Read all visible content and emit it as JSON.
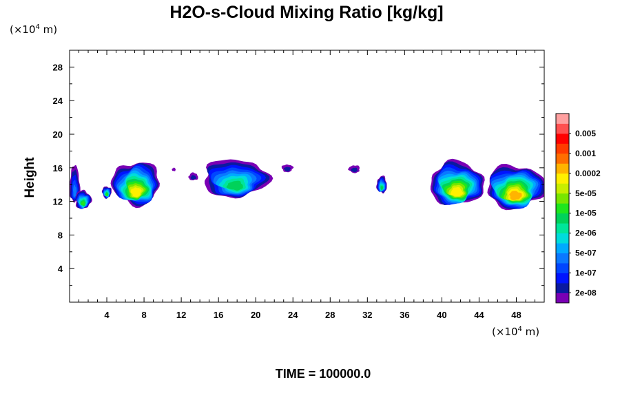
{
  "chart_data": {
    "type": "heatmap",
    "title": "H2O-s-Cloud Mixing Ratio [kg/kg]",
    "ylabel": "Height",
    "y_units": {
      "prefix": "(×10",
      "exp": "4",
      "suffix": " m)"
    },
    "x_units": {
      "prefix": "(×10",
      "exp": "4",
      "suffix": " m)"
    },
    "xlim": [
      0,
      51
    ],
    "ylim": [
      0,
      30
    ],
    "x_ticks": [
      4,
      8,
      12,
      16,
      20,
      24,
      28,
      32,
      36,
      40,
      44,
      48
    ],
    "y_ticks": [
      4,
      8,
      12,
      16,
      20,
      24,
      28
    ],
    "grid": false,
    "colorbar": {
      "position": "right",
      "colors": [
        "#7a00b4",
        "#0a1aa0",
        "#0014ff",
        "#0046ff",
        "#0a78ff",
        "#00aaff",
        "#00dcdc",
        "#00e69a",
        "#00d25a",
        "#1ee61e",
        "#78e600",
        "#c8ee00",
        "#fff000",
        "#ffb400",
        "#ff6e00",
        "#ff3c00",
        "#ff0000",
        "#ff5050",
        "#ffa0a0"
      ],
      "labels": [
        "2e-08",
        "1e-07",
        "5e-07",
        "2e-06",
        "1e-05",
        "5e-05",
        "0.0002",
        "0.001",
        "0.005"
      ]
    },
    "clouds": [
      {
        "x0": 0.0,
        "x1": 1.1,
        "top": 16.2,
        "base": 11.8,
        "peak": 4
      },
      {
        "x0": 0.6,
        "x1": 2.3,
        "top": 13.3,
        "base": 11.1,
        "peak": 9
      },
      {
        "x0": 3.5,
        "x1": 4.5,
        "top": 13.8,
        "base": 12.4,
        "peak": 9
      },
      {
        "x0": 4.6,
        "x1": 9.7,
        "top": 16.7,
        "base": 11.6,
        "peak": 12
      },
      {
        "x0": 11.0,
        "x1": 11.4,
        "top": 16.0,
        "base": 15.6,
        "peak": 0
      },
      {
        "x0": 12.8,
        "x1": 13.8,
        "top": 15.4,
        "base": 14.5,
        "peak": 1
      },
      {
        "x0": 14.3,
        "x1": 21.3,
        "top": 17.0,
        "base": 12.5,
        "peak": 8
      },
      {
        "x0": 22.8,
        "x1": 24.0,
        "top": 16.4,
        "base": 15.5,
        "peak": 1
      },
      {
        "x0": 30.0,
        "x1": 31.2,
        "top": 16.3,
        "base": 15.4,
        "peak": 1
      },
      {
        "x0": 33.0,
        "x1": 34.1,
        "top": 15.0,
        "base": 13.0,
        "peak": 8
      },
      {
        "x0": 38.7,
        "x1": 44.5,
        "top": 16.7,
        "base": 11.6,
        "peak": 12
      },
      {
        "x0": 44.8,
        "x1": 51.0,
        "top": 16.3,
        "base": 11.2,
        "peak": 13
      }
    ]
  },
  "time_label": "TIME = 100000.0"
}
